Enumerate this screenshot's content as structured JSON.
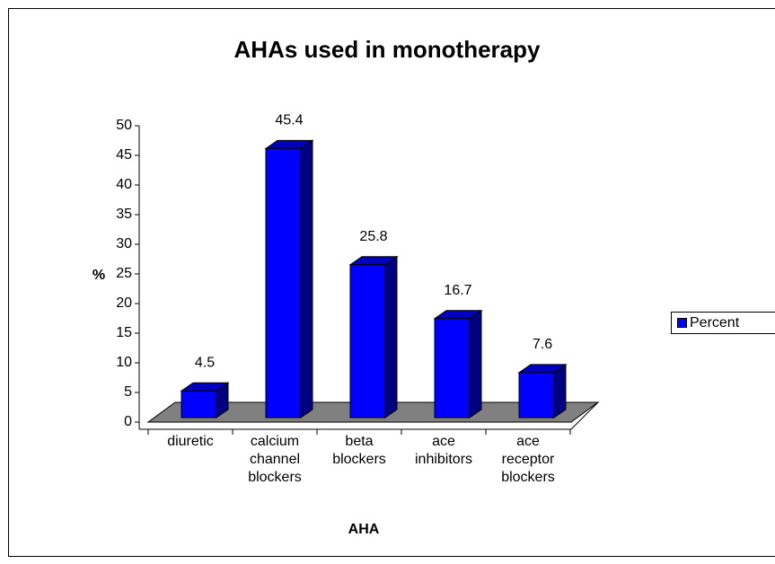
{
  "chart_data": {
    "type": "bar",
    "title": "AHAs used in monotherapy",
    "categories": [
      "diuretic",
      "calcium\nchannel\nblockers",
      "beta\nblockers",
      "ace\ninhibitors",
      "ace\nreceptor\nblockers"
    ],
    "series": [
      {
        "name": "Percent",
        "color": "#0000ff",
        "values": [
          4.5,
          45.4,
          25.8,
          16.7,
          7.6
        ]
      }
    ],
    "xlabel": "AHA",
    "ylabel": "%",
    "ylim": [
      0,
      50
    ],
    "yticks": [
      0,
      5,
      10,
      15,
      20,
      25,
      30,
      35,
      40,
      45,
      50
    ],
    "legend": "right",
    "data_labels": true
  }
}
